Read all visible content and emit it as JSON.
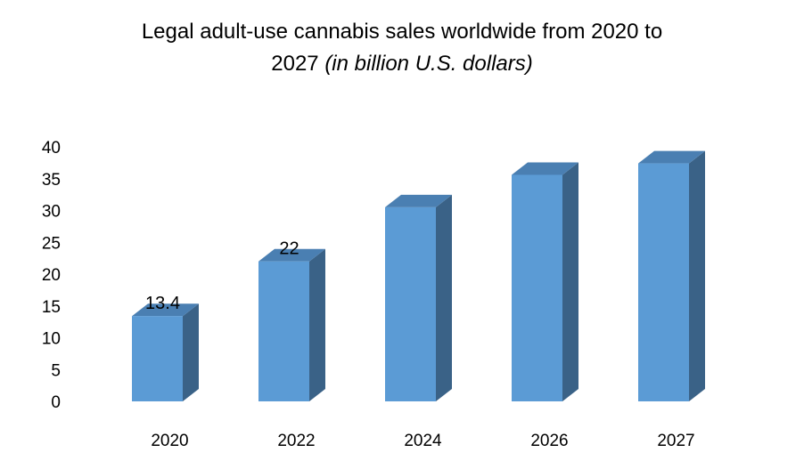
{
  "chart_data": {
    "type": "bar",
    "title": "Legal adult-use cannabis sales worldwide from 2020 to",
    "title_line2_plain": "2027",
    "title_line2_italic": "(in billion U.S. dollars)",
    "categories": [
      "2020",
      "2022",
      "2024",
      "2026",
      "2027"
    ],
    "values": [
      13.4,
      22,
      30.5,
      35.6,
      37.4
    ],
    "data_labels": [
      "13.4",
      "22",
      "",
      "",
      ""
    ],
    "ylim": [
      0,
      40
    ],
    "yticks": [
      "0",
      "5",
      "10",
      "15",
      "20",
      "25",
      "30",
      "35",
      "40"
    ],
    "grid": false,
    "legend": "none",
    "style": "3d-column",
    "colors": {
      "front": "#5b9bd5",
      "side": "#3a6287",
      "top": "#4a7fb2"
    }
  }
}
